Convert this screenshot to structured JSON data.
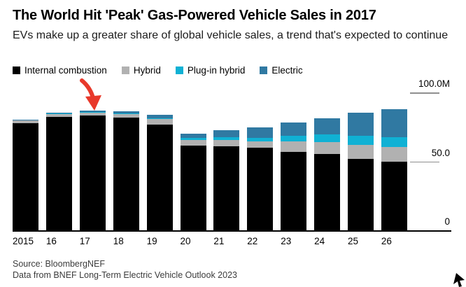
{
  "header": {
    "title": "The World Hit 'Peak' Gas-Powered Vehicle Sales in 2017",
    "subtitle": "EVs make up a greater share of global vehicle sales, a trend that's expected to continue"
  },
  "legend": [
    {
      "label": "Internal combustion",
      "color": "#000000"
    },
    {
      "label": "Hybrid",
      "color": "#b1b1b1"
    },
    {
      "label": "Plug-in hybrid",
      "color": "#10b1d4"
    },
    {
      "label": "Electric",
      "color": "#3079a2"
    }
  ],
  "chart_data": {
    "type": "bar",
    "stacked": true,
    "title": "The World Hit 'Peak' Gas-Powered Vehicle Sales in 2017",
    "unit": "millions of vehicles per year",
    "categories": [
      "2015",
      "16",
      "17",
      "18",
      "19",
      "20",
      "21",
      "22",
      "23",
      "24",
      "25",
      "26"
    ],
    "series": [
      {
        "name": "Internal combustion",
        "color": "#000000",
        "values": [
          78,
          83,
          84,
          82,
          77,
          62,
          61.5,
          60.5,
          57.5,
          56,
          52.5,
          50.5
        ]
      },
      {
        "name": "Hybrid",
        "color": "#b1b1b1",
        "values": [
          2.0,
          2.0,
          2.0,
          2.6,
          4.0,
          4.2,
          4.5,
          4.3,
          7.5,
          8.5,
          10.0,
          10.5
        ]
      },
      {
        "name": "Plug-in hybrid",
        "color": "#10b1d4",
        "values": [
          0.2,
          0.3,
          0.4,
          0.6,
          0.6,
          1.2,
          2.2,
          2.8,
          3.8,
          5.5,
          6.8,
          7.0
        ]
      },
      {
        "name": "Electric",
        "color": "#3079a2",
        "values": [
          0.3,
          0.5,
          0.8,
          1.6,
          2.6,
          3.2,
          4.8,
          7.3,
          10.0,
          12.0,
          16.5,
          20.5
        ]
      }
    ],
    "ylim": [
      0,
      100
    ],
    "yticks": [
      {
        "label": "0",
        "value": 0
      },
      {
        "label": "50.0",
        "value": 50
      },
      {
        "label": "100.0M",
        "value": 100
      }
    ],
    "grid": false,
    "legend_position": "top",
    "annotation": {
      "type": "arrow",
      "target_category": "17",
      "meaning": "peak gas-powered sales year",
      "color": "#e8392b"
    }
  },
  "footer": {
    "source_line1": "Source: BloombergNEF",
    "source_line2": "Data from BNEF Long-Term Electric Vehicle Outlook 2023"
  }
}
